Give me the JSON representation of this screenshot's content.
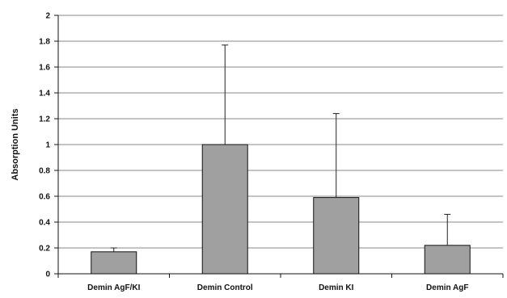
{
  "chart_data": {
    "type": "bar",
    "title": "",
    "xlabel": "",
    "ylabel": "Absorption Units",
    "ylim": [
      0,
      2
    ],
    "yticks": [
      "0",
      "0.2",
      "0.4",
      "0.6",
      "0.8",
      "1",
      "1.2",
      "1.4",
      "1.6",
      "1.8",
      "2"
    ],
    "grid": true,
    "categories": [
      "Demin AgF/KI",
      "Demin Control",
      "Demin KI",
      "Demin AgF"
    ],
    "values": [
      0.17,
      1.0,
      0.59,
      0.22
    ],
    "error_upper": [
      0.03,
      0.77,
      0.65,
      0.24
    ],
    "colors": {
      "bar_fill": "#a0a0a0",
      "bar_stroke": "#111111",
      "grid": "#888888",
      "axis": "#111111"
    }
  }
}
